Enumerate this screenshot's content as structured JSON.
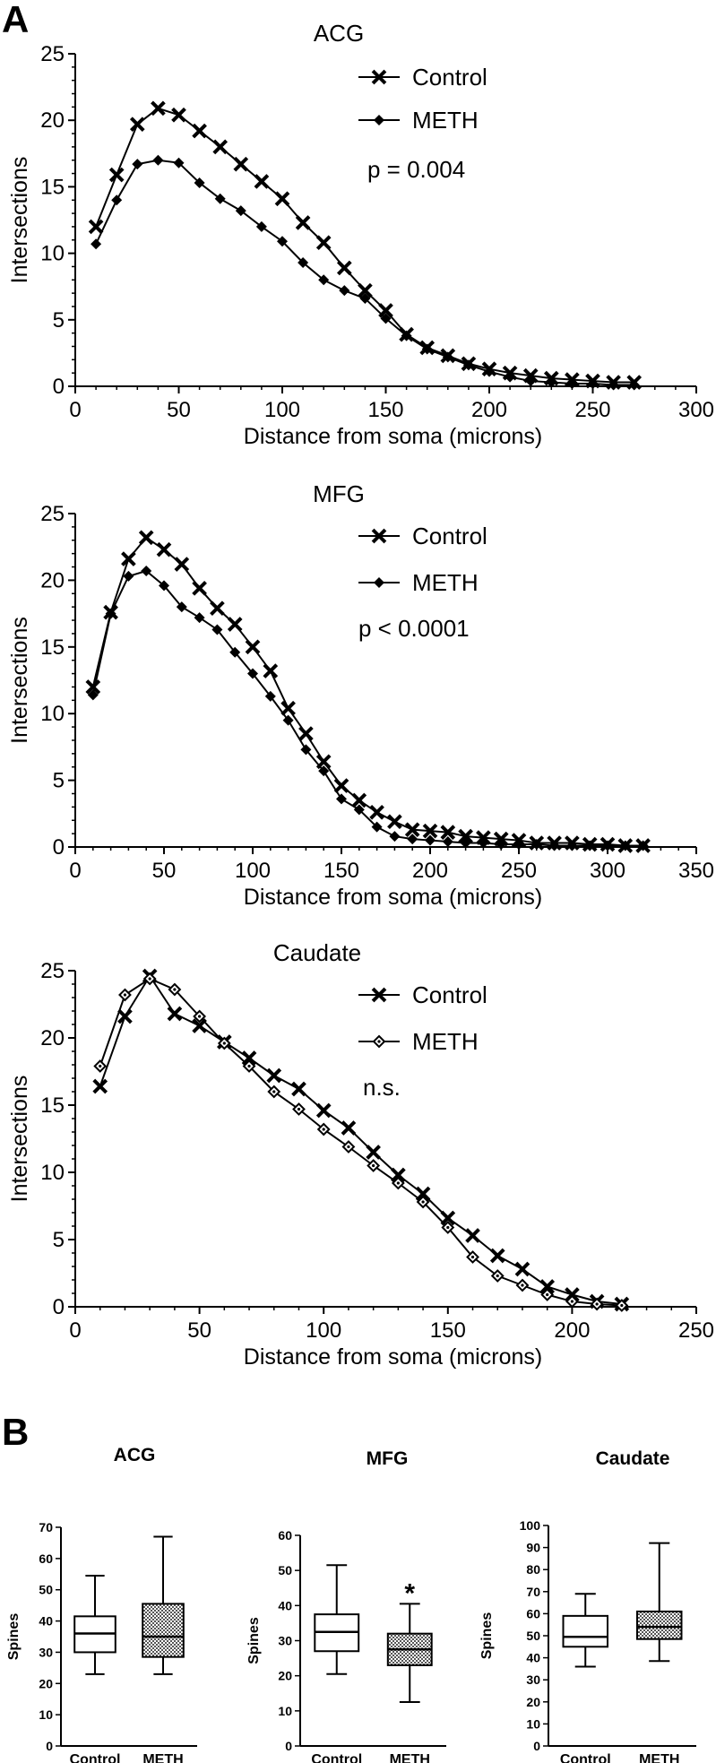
{
  "panel_labels": [
    "A",
    "B"
  ],
  "chart_data": [
    {
      "type": "line",
      "title": "ACG",
      "xlabel": "Distance from soma (microns)",
      "ylabel": "Intersections",
      "xlim": [
        0,
        300
      ],
      "ylim": [
        0,
        25
      ],
      "xticks": [
        0,
        50,
        100,
        150,
        200,
        250,
        300
      ],
      "yticks": [
        0,
        5,
        10,
        15,
        20,
        25
      ],
      "legend_placement": "top-right",
      "annotation": "p = 0.004",
      "series": [
        {
          "name": "Control",
          "marker": "x",
          "x": [
            10,
            20,
            30,
            40,
            50,
            60,
            70,
            80,
            90,
            100,
            110,
            120,
            130,
            140,
            150,
            160,
            170,
            180,
            190,
            200,
            210,
            220,
            230,
            240,
            250,
            260,
            270
          ],
          "y": [
            12.0,
            15.9,
            19.7,
            20.9,
            20.4,
            19.2,
            18.0,
            16.7,
            15.4,
            14.1,
            12.3,
            10.8,
            8.9,
            7.2,
            5.7,
            3.9,
            2.9,
            2.3,
            1.7,
            1.3,
            1.0,
            0.8,
            0.6,
            0.5,
            0.4,
            0.3,
            0.3
          ]
        },
        {
          "name": "METH",
          "marker": "diamond",
          "x": [
            10,
            20,
            30,
            40,
            50,
            60,
            70,
            80,
            90,
            100,
            110,
            120,
            130,
            140,
            150,
            160,
            170,
            180,
            190,
            200,
            210,
            220,
            230,
            240,
            250,
            260,
            270
          ],
          "y": [
            10.7,
            14.0,
            16.7,
            17.0,
            16.8,
            15.3,
            14.1,
            13.2,
            12.0,
            10.9,
            9.3,
            8.0,
            7.2,
            6.6,
            5.1,
            3.8,
            2.8,
            2.2,
            1.6,
            1.1,
            0.7,
            0.4,
            0.3,
            0.2,
            0.2,
            0.1,
            0.1
          ]
        }
      ]
    },
    {
      "type": "line",
      "title": "MFG",
      "xlabel": "Distance from soma (microns)",
      "ylabel": "Intersections",
      "xlim": [
        0,
        350
      ],
      "ylim": [
        0,
        25
      ],
      "xticks": [
        0,
        50,
        100,
        150,
        200,
        250,
        300,
        350
      ],
      "yticks": [
        0,
        5,
        10,
        15,
        20,
        25
      ],
      "legend_placement": "top-right",
      "annotation": "p < 0.0001",
      "series": [
        {
          "name": "Control",
          "marker": "x",
          "x": [
            10,
            20,
            30,
            40,
            50,
            60,
            70,
            80,
            90,
            100,
            110,
            120,
            130,
            140,
            150,
            160,
            170,
            180,
            190,
            200,
            210,
            220,
            230,
            240,
            250,
            260,
            270,
            280,
            290,
            300,
            310,
            320
          ],
          "y": [
            12.0,
            17.6,
            21.6,
            23.2,
            22.3,
            21.2,
            19.4,
            17.9,
            16.7,
            15.0,
            13.2,
            10.4,
            8.5,
            6.4,
            4.6,
            3.5,
            2.6,
            1.9,
            1.3,
            1.2,
            1.1,
            0.8,
            0.7,
            0.6,
            0.5,
            0.3,
            0.3,
            0.3,
            0.2,
            0.2,
            0.1,
            0.1
          ]
        },
        {
          "name": "METH",
          "marker": "diamond",
          "x": [
            10,
            20,
            30,
            40,
            50,
            60,
            70,
            80,
            90,
            100,
            110,
            120,
            130,
            140,
            150,
            160,
            170,
            180,
            190,
            200,
            210,
            220,
            230,
            240,
            250,
            260,
            270,
            280,
            290,
            300,
            310,
            320
          ],
          "y": [
            11.4,
            17.5,
            20.3,
            20.7,
            19.6,
            18.0,
            17.2,
            16.3,
            14.6,
            13.0,
            11.3,
            9.5,
            7.3,
            5.7,
            3.6,
            2.8,
            1.5,
            0.8,
            0.6,
            0.5,
            0.4,
            0.3,
            0.3,
            0.2,
            0.2,
            0.2,
            0.1,
            0.1,
            0.1,
            0.1,
            0.1,
            0.1
          ]
        }
      ]
    },
    {
      "type": "line",
      "title": "Caudate",
      "xlabel": "Distance from soma (microns)",
      "ylabel": "Intersections",
      "xlim": [
        0,
        250
      ],
      "ylim": [
        0,
        25
      ],
      "xticks": [
        0,
        50,
        100,
        150,
        200,
        250
      ],
      "yticks": [
        0,
        5,
        10,
        15,
        20,
        25
      ],
      "legend_placement": "top-right",
      "annotation": "n.s.",
      "series": [
        {
          "name": "Control",
          "marker": "x",
          "x": [
            10,
            20,
            30,
            40,
            50,
            60,
            70,
            80,
            90,
            100,
            110,
            120,
            130,
            140,
            150,
            160,
            170,
            180,
            190,
            200,
            210,
            220
          ],
          "y": [
            16.4,
            21.6,
            24.6,
            21.8,
            20.9,
            19.7,
            18.5,
            17.2,
            16.2,
            14.6,
            13.3,
            11.5,
            9.8,
            8.4,
            6.6,
            5.3,
            3.8,
            2.8,
            1.5,
            0.9,
            0.4,
            0.2
          ]
        },
        {
          "name": "METH",
          "marker": "open-diamond",
          "x": [
            10,
            20,
            30,
            40,
            50,
            60,
            70,
            80,
            90,
            100,
            110,
            120,
            130,
            140,
            150,
            160,
            170,
            180,
            190,
            200,
            210,
            220
          ],
          "y": [
            17.9,
            23.2,
            24.4,
            23.6,
            21.6,
            19.6,
            17.9,
            16.0,
            14.7,
            13.2,
            11.9,
            10.5,
            9.2,
            7.8,
            5.9,
            3.7,
            2.3,
            1.6,
            0.9,
            0.4,
            0.2,
            0.1
          ]
        }
      ]
    },
    {
      "type": "box",
      "title": "ACG",
      "ylabel": "Spines",
      "ylim": [
        0,
        70
      ],
      "yticks": [
        0,
        10,
        20,
        30,
        40,
        50,
        60,
        70
      ],
      "categories": [
        "Control",
        "METH"
      ],
      "boxes": [
        {
          "category": "Control",
          "fill": "white",
          "min": 23,
          "q1": 30,
          "median": 36,
          "q3": 41.5,
          "max": 54.5
        },
        {
          "category": "METH",
          "fill": "hatched",
          "min": 23,
          "q1": 28.5,
          "median": 35,
          "q3": 45.5,
          "max": 67
        }
      ]
    },
    {
      "type": "box",
      "title": "MFG",
      "ylabel": "Spines",
      "ylim": [
        0,
        60
      ],
      "yticks": [
        0,
        10,
        20,
        30,
        40,
        50,
        60
      ],
      "categories": [
        "Control",
        "METH"
      ],
      "significance": "*",
      "boxes": [
        {
          "category": "Control",
          "fill": "white",
          "min": 20.5,
          "q1": 27,
          "median": 32.5,
          "q3": 37.5,
          "max": 51.5
        },
        {
          "category": "METH",
          "fill": "hatched",
          "min": 12.5,
          "q1": 23,
          "median": 27.5,
          "q3": 32,
          "max": 40.5
        }
      ]
    },
    {
      "type": "box",
      "title": "Caudate",
      "ylabel": "Spines",
      "ylim": [
        0,
        100
      ],
      "yticks": [
        0,
        10,
        20,
        30,
        40,
        50,
        60,
        70,
        80,
        90,
        100
      ],
      "categories": [
        "Control",
        "METH"
      ],
      "boxes": [
        {
          "category": "Control",
          "fill": "white",
          "min": 36,
          "q1": 45,
          "median": 49.5,
          "q3": 59,
          "max": 69
        },
        {
          "category": "METH",
          "fill": "hatched",
          "min": 38.5,
          "q1": 48.5,
          "median": 54,
          "q3": 61,
          "max": 92
        }
      ]
    }
  ],
  "colors": {
    "ink": "#000000",
    "background": "#ffffff"
  }
}
